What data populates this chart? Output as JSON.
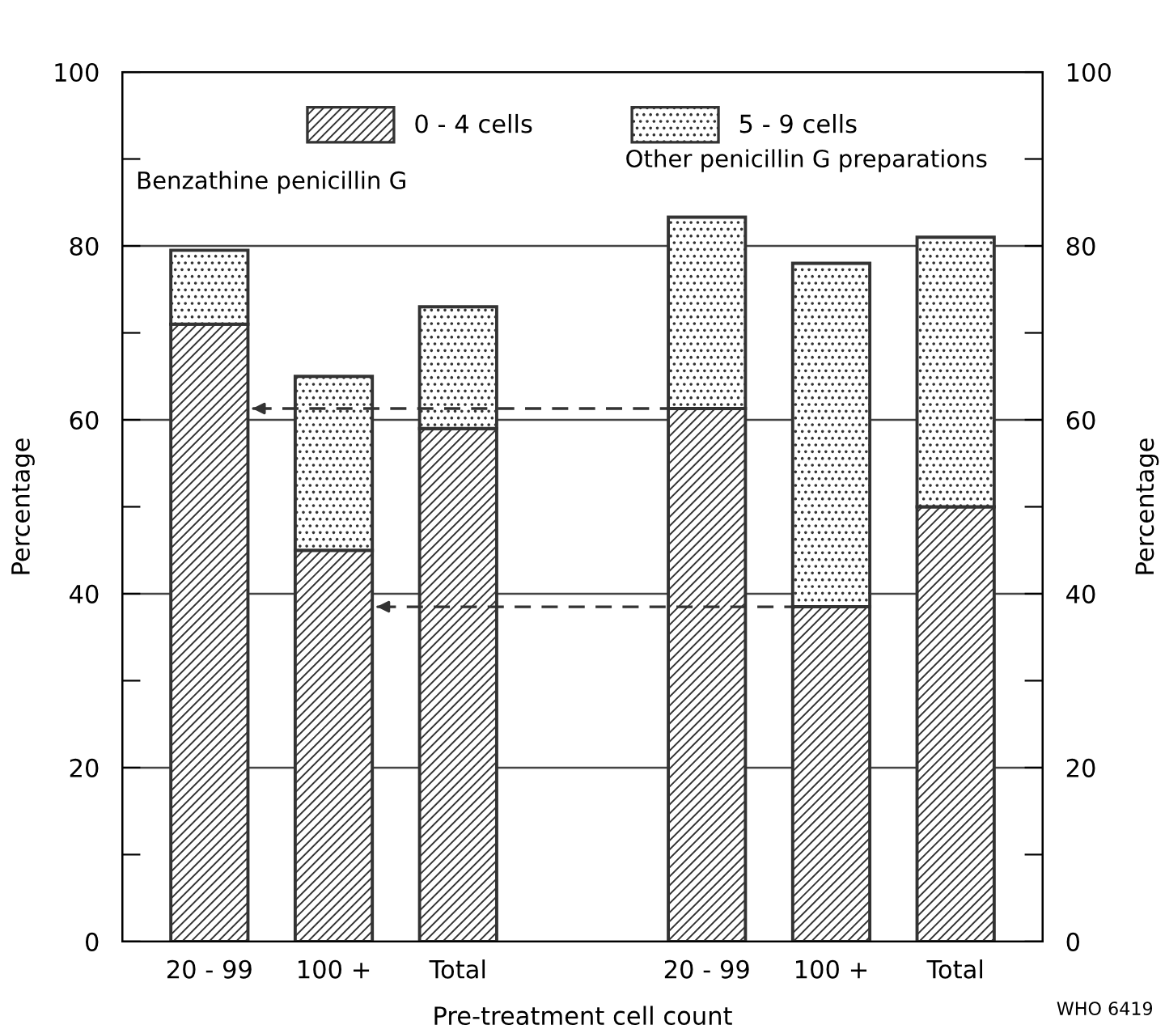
{
  "chart_data": {
    "type": "bar",
    "stacked": true,
    "xlabel": "Pre-treatment cell count",
    "ylabel": "Percentage",
    "y2label": "Percentage",
    "categories": [
      "20 - 99",
      "100 +",
      "Total",
      null,
      "20 - 99",
      "100 +",
      "Total"
    ],
    "series": [
      {
        "name": "0 - 4 cells",
        "color": "#333333",
        "values": [
          71,
          45,
          59,
          null,
          61.3,
          38.5,
          50
        ]
      },
      {
        "name": "5 - 9 cells",
        "color": "#333333",
        "values": [
          8.5,
          20,
          14,
          null,
          22,
          39.5,
          31
        ]
      }
    ],
    "ylim": [
      0,
      100
    ],
    "yticks": [
      0,
      {
        "value": 10,
        "label": null
      },
      20,
      {
        "value": 30,
        "label": null
      },
      40,
      {
        "value": 50,
        "label": null
      },
      60,
      {
        "value": 70,
        "label": null
      },
      80,
      {
        "value": 90,
        "label": null
      },
      100
    ],
    "y2lim": [
      0,
      100
    ],
    "y2ticks": [
      0,
      {
        "value": 10,
        "label": null
      },
      20,
      {
        "value": 30,
        "label": null
      },
      40,
      {
        "value": 50,
        "label": null
      },
      60,
      {
        "value": 70,
        "label": null
      },
      80,
      {
        "value": 90,
        "label": null
      },
      100
    ],
    "grid": "y",
    "legend": "top",
    "ref_lines": [
      {
        "axis": "y",
        "value": 61.3,
        "line_style": "dashed"
      },
      {
        "axis": "y",
        "value": 38.5,
        "line_style": "dashed"
      }
    ],
    "annotations": [
      "Benzathine penicillin G",
      "Other penicillin G preparations",
      "WHO 6419"
    ]
  }
}
